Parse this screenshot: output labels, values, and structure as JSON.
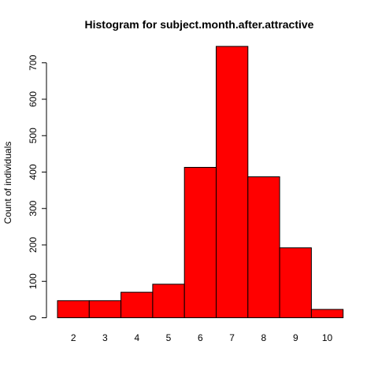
{
  "chart_data": {
    "type": "bar",
    "title": "Histogram for subject.month.after.attractive",
    "xlabel": "",
    "ylabel": "Count of individuals",
    "categories": [
      "2",
      "3",
      "4",
      "5",
      "6",
      "7",
      "8",
      "9",
      "10"
    ],
    "values": [
      47,
      47,
      70,
      92,
      413,
      745,
      387,
      192,
      23
    ],
    "ylim": [
      0,
      700
    ],
    "yticks": [
      0,
      100,
      200,
      300,
      400,
      500,
      600,
      700
    ],
    "bar_color": "#ff0000",
    "grid": false,
    "legend": "none"
  }
}
